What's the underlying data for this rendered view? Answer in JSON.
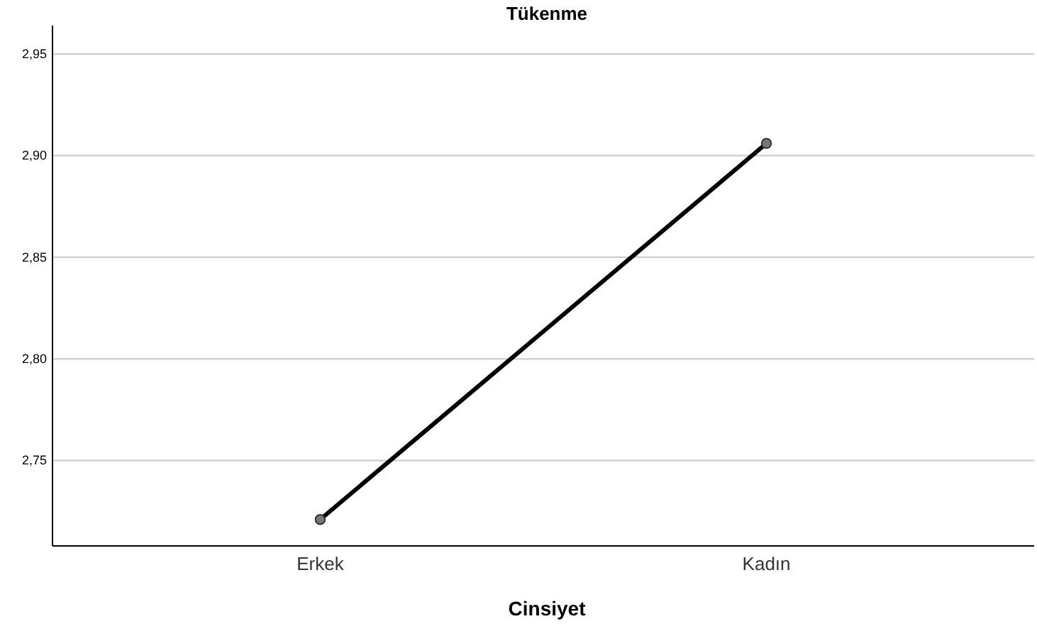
{
  "chart_data": {
    "type": "line",
    "title": "Tükenme",
    "xlabel": "Cinsiyet",
    "categories": [
      "Erkek",
      "Kadın"
    ],
    "series": [
      {
        "color": "#000000",
        "values": [
          2.721,
          2.906
        ]
      }
    ],
    "ylim": [
      2.708,
      2.964
    ],
    "yticks": [
      {
        "value": 2.75,
        "label": "2,75"
      },
      {
        "value": 2.8,
        "label": "2,80"
      },
      {
        "value": 2.85,
        "label": "2,85"
      },
      {
        "value": 2.9,
        "label": "2,90"
      },
      {
        "value": 2.95,
        "label": "2,95"
      }
    ],
    "grid": "y",
    "marker": "circle",
    "line_style": "solid"
  }
}
